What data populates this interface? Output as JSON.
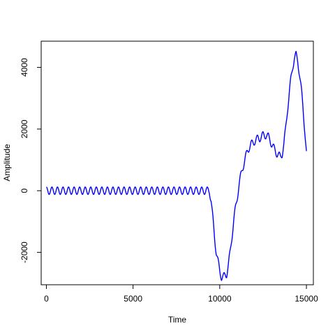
{
  "chart_data": {
    "type": "line",
    "title": "",
    "xlabel": "Time",
    "ylabel": "Amplitude",
    "xlim": [
      -300,
      15400
    ],
    "ylim": [
      -3050,
      4850
    ],
    "x_ticks": [
      0,
      5000,
      10000,
      15000
    ],
    "x_tick_labels": [
      "0",
      "5000",
      "10000",
      "15000"
    ],
    "y_ticks": [
      -2000,
      0,
      2000,
      4000
    ],
    "y_tick_labels": [
      "-2000",
      "0",
      "2000",
      "4000"
    ],
    "grid": false,
    "legend": "none",
    "series": [
      {
        "color": "#0000ff",
        "x": [
          0,
          500,
          1000,
          1500,
          2000,
          2500,
          3000,
          3500,
          4000,
          4500,
          5000,
          5500,
          6000,
          6500,
          7000,
          7500,
          8000,
          8500,
          9000,
          9400,
          9500,
          9600,
          9700,
          9800,
          9900,
          10000,
          10100,
          10200,
          10300,
          10400,
          10500,
          10600,
          10700,
          10800,
          10900,
          11000,
          11100,
          11200,
          11300,
          11400,
          11500,
          11600,
          11700,
          11800,
          11900,
          12000,
          12100,
          12200,
          12300,
          12400,
          12500,
          12600,
          12700,
          12800,
          12900,
          13000,
          13100,
          13200,
          13300,
          13400,
          13500,
          13600,
          13700,
          13800,
          13900,
          14000,
          14100,
          14200,
          14300,
          14400,
          14500,
          14600,
          14700,
          14800,
          14900,
          15000
        ],
        "y": [
          0,
          0,
          0,
          0,
          0,
          0,
          0,
          0,
          0,
          0,
          0,
          0,
          0,
          0,
          0,
          0,
          0,
          0,
          0,
          0,
          -300,
          -900,
          -1500,
          -2000,
          -2300,
          -2600,
          -2800,
          -2800,
          -2750,
          -2700,
          -2400,
          -2000,
          -1500,
          -1000,
          -600,
          -250,
          150,
          450,
          700,
          900,
          1100,
          1300,
          1400,
          1500,
          1550,
          1600,
          1650,
          1700,
          1700,
          1750,
          1800,
          1800,
          1800,
          1750,
          1650,
          1500,
          1400,
          1300,
          1200,
          1150,
          1100,
          1200,
          1500,
          2000,
          2600,
          3100,
          3600,
          4000,
          4300,
          4400,
          4200,
          3800,
          3300,
          2700,
          2000,
          1200
        ],
        "oscillation": {
          "period": 320,
          "amplitude": 120
        }
      }
    ]
  }
}
